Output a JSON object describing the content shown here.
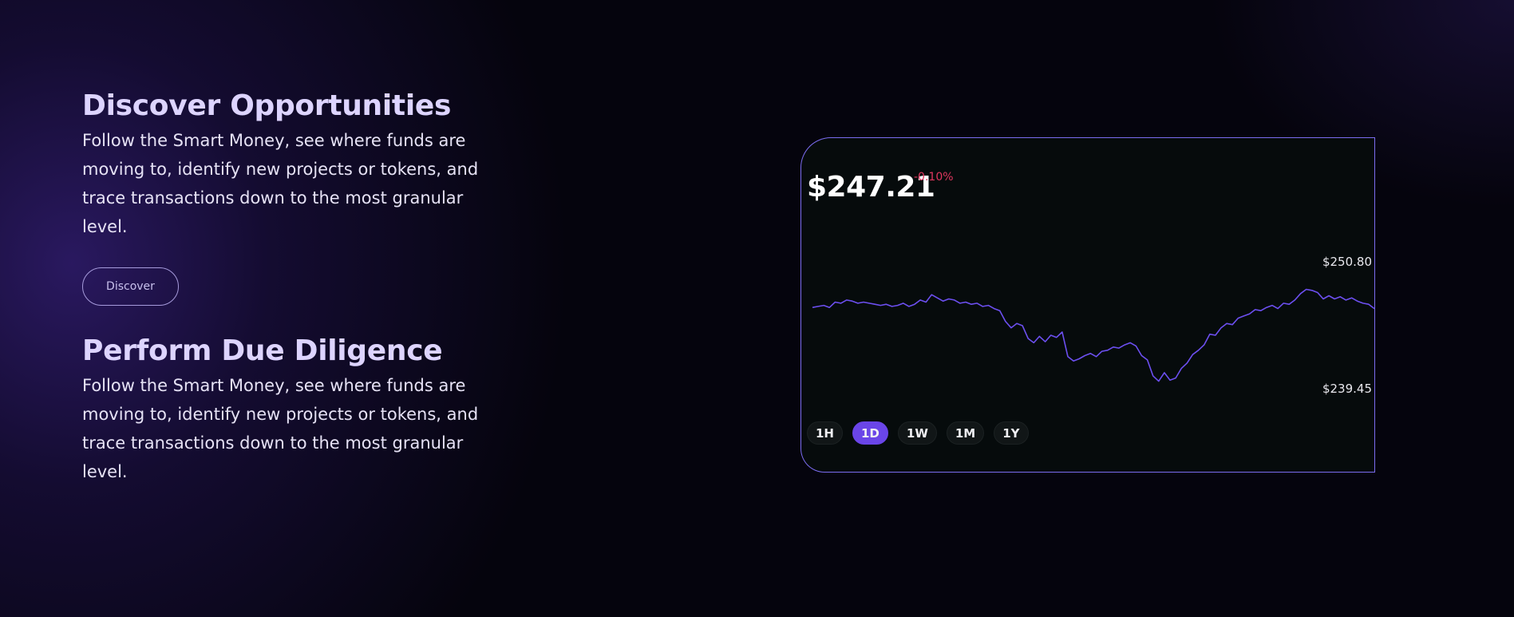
{
  "features": [
    {
      "title": "Discover Opportunities",
      "text": "Follow the Smart Money, see where funds are moving to, identify new projects or tokens, and trace transactions down to the most granular level.",
      "button": "Discover"
    },
    {
      "title": "Perform Due Diligence",
      "text": "Follow the Smart Money, see where funds are moving to, identify new projects or tokens, and trace transactions down to the most granular level."
    }
  ],
  "widget": {
    "price": "$247.21",
    "change": "-0.10%",
    "high_label": "$250.80",
    "low_label": "$239.45",
    "ranges": [
      "1H",
      "1D",
      "1W",
      "1M",
      "1Y"
    ],
    "active_range": "1D"
  },
  "colors": {
    "line": "#6c4ff0",
    "accent": "#6a45e8",
    "negative": "#e0375f",
    "card_border": "#7b6cf0"
  },
  "chart_data": {
    "type": "line",
    "y_high": 250.8,
    "y_low": 239.45,
    "series": [
      {
        "values": [
          246.9,
          247.0,
          247.1,
          246.9,
          247.4,
          247.3,
          247.6,
          247.5,
          247.3,
          247.4,
          247.3,
          247.2,
          247.1,
          247.2,
          247.0,
          247.1,
          247.3,
          247.0,
          247.2,
          247.6,
          247.4,
          248.1,
          247.8,
          247.5,
          247.7,
          247.6,
          247.3,
          247.4,
          247.2,
          247.3,
          247.0,
          247.1,
          246.8,
          246.6,
          245.6,
          245.0,
          245.4,
          245.2,
          244.0,
          243.6,
          244.2,
          243.7,
          244.3,
          244.1,
          244.6,
          242.3,
          241.9,
          242.1,
          242.4,
          242.6,
          242.3,
          242.8,
          242.9,
          243.2,
          243.1,
          243.4,
          243.6,
          243.3,
          242.4,
          242.0,
          240.5,
          240.0,
          240.8,
          240.1,
          240.3,
          241.2,
          241.7,
          242.5,
          242.9,
          243.4,
          244.4,
          244.3,
          245.0,
          245.4,
          245.3,
          245.9,
          246.1,
          246.3,
          246.7,
          246.6,
          246.9,
          247.1,
          246.8,
          247.3,
          247.2,
          247.6,
          248.2,
          248.6,
          248.5,
          248.3,
          247.7,
          248.0,
          247.7,
          247.9,
          247.6,
          247.8,
          247.5,
          247.3,
          247.2,
          246.8
        ]
      }
    ]
  }
}
